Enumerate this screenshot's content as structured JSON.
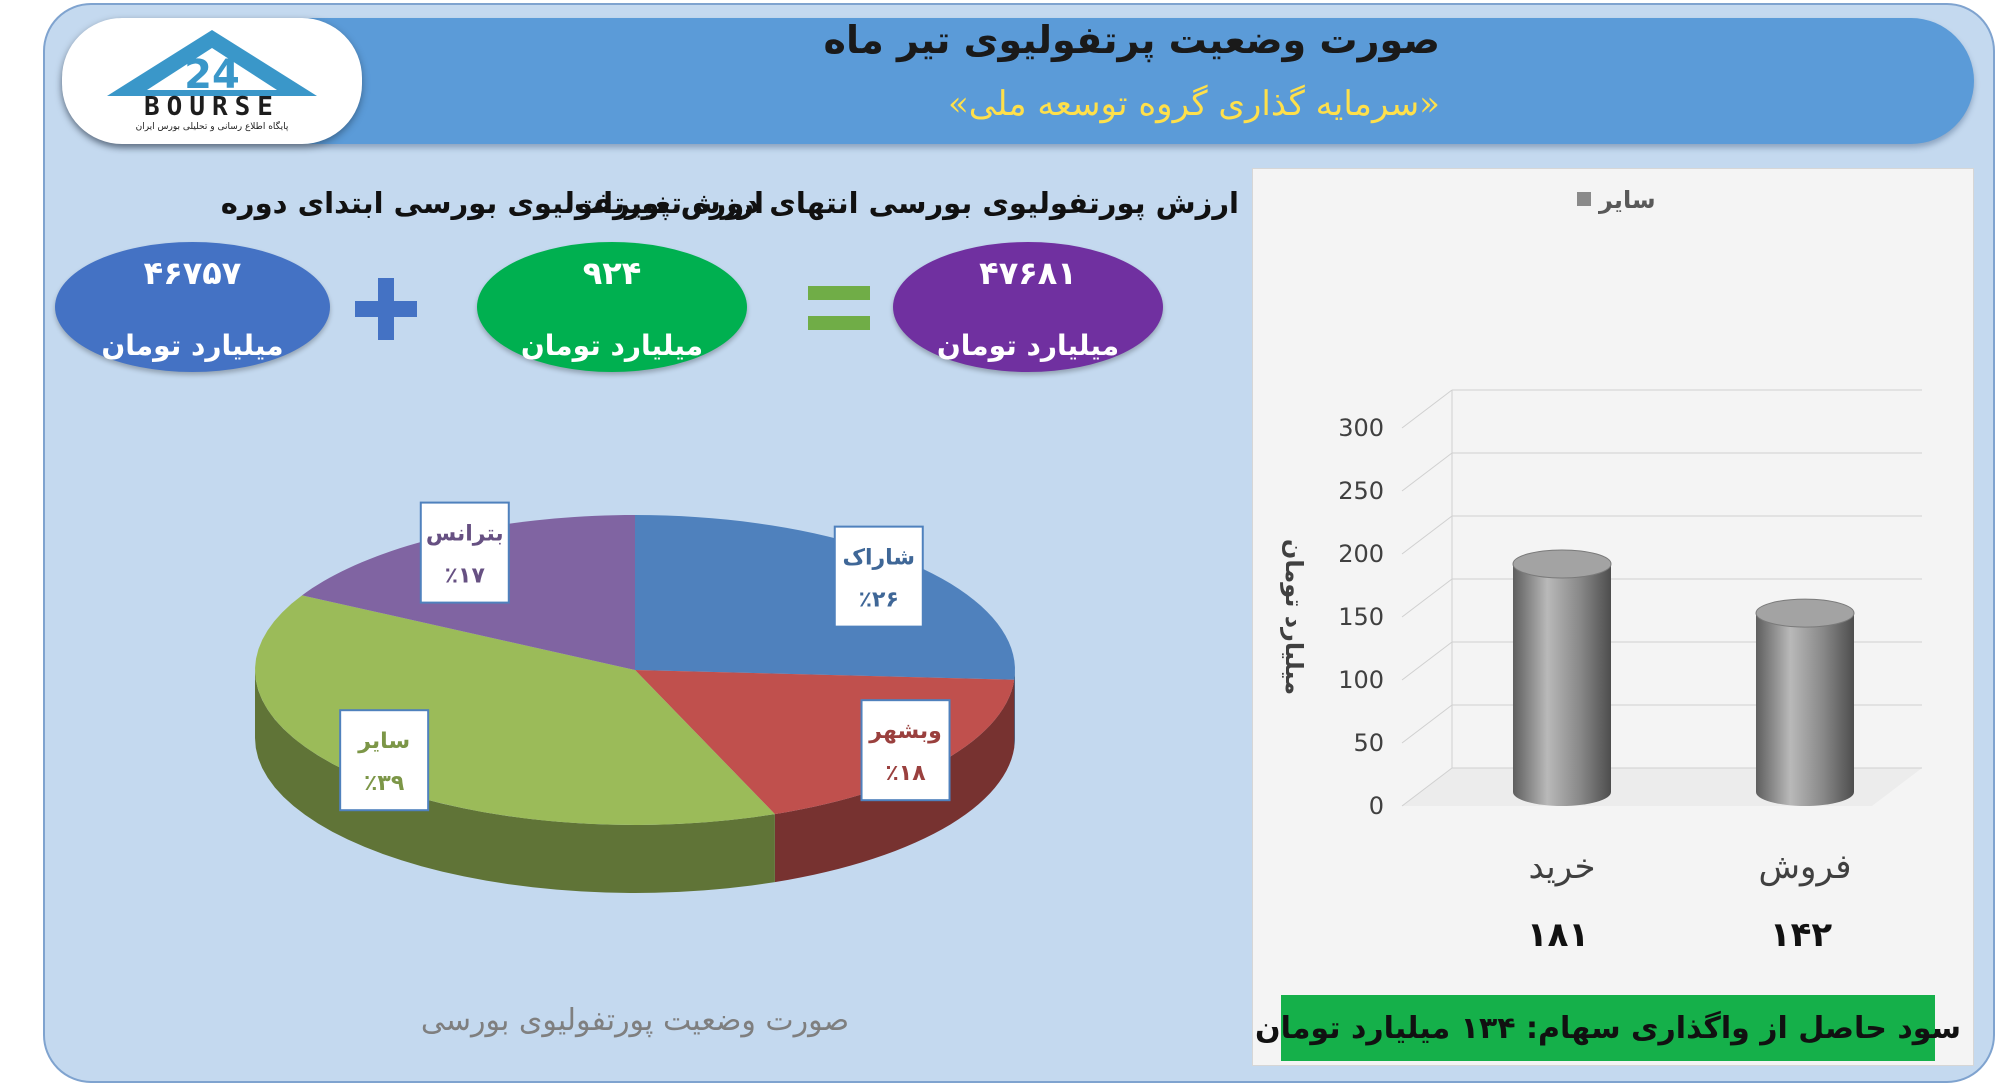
{
  "header": {
    "title": "صورت وضعیت پرتفولیوی تیر ماه",
    "subtitle": "«سرمایه گذاری گروه توسعه ملی»"
  },
  "logo": {
    "mark": "24",
    "text": "BOURSE",
    "subtext": "پایگاه اطلاع رسانی و تحلیلی بورس ایران"
  },
  "portfolio": {
    "start": {
      "label": "ارزش پورتفولیوی بورسی ابتدای دوره",
      "value": "۴۶۷۵۷",
      "unit": "میلیارد تومان",
      "color": "#4472c4"
    },
    "change": {
      "label": "تغییرات",
      "value": "۹۲۴",
      "unit": "میلیارد تومان",
      "color": "#00b050"
    },
    "end": {
      "label": "ارزش پورتفولیوی بورسی انتهای دوره",
      "value": "۴۷۶۸۱",
      "unit": "میلیارد تومان",
      "color": "#7030a0"
    },
    "plus_color": "#4472c4",
    "equals_color": "#70ad47"
  },
  "chart_data": [
    {
      "type": "pie",
      "title": "صورت وضعیت پورتفولیوی بورسی",
      "slices": [
        {
          "name": "شاراک",
          "label": "٪۲۶",
          "value": 26,
          "color": "#4f81bd"
        },
        {
          "name": "وبشهر",
          "label": "٪۱۸",
          "value": 18,
          "color": "#c0504d"
        },
        {
          "name": "سایر",
          "label": "٪۳۹",
          "value": 39,
          "color": "#9bbb59"
        },
        {
          "name": "بترانس",
          "label": "٪۱۷",
          "value": 17,
          "color": "#8064a2"
        }
      ]
    },
    {
      "type": "bar",
      "legend": "سایر",
      "legend_position": "top",
      "ylabel": "میلیارد تومان",
      "ylim": [
        0,
        300
      ],
      "yticks": [
        "0",
        "50",
        "100",
        "150",
        "200",
        "250",
        "300"
      ],
      "categories": [
        "خرید",
        "فروش"
      ],
      "values": [
        181,
        142
      ],
      "value_labels": [
        "۱۸۱",
        "۱۴۲"
      ],
      "grid": true,
      "bar_color": "#8a8a8a"
    }
  ],
  "profit": {
    "text": "سود حاصل از واگذاری سهام: ۱۳۴ میلیارد تومان",
    "color": "#15b04a"
  }
}
